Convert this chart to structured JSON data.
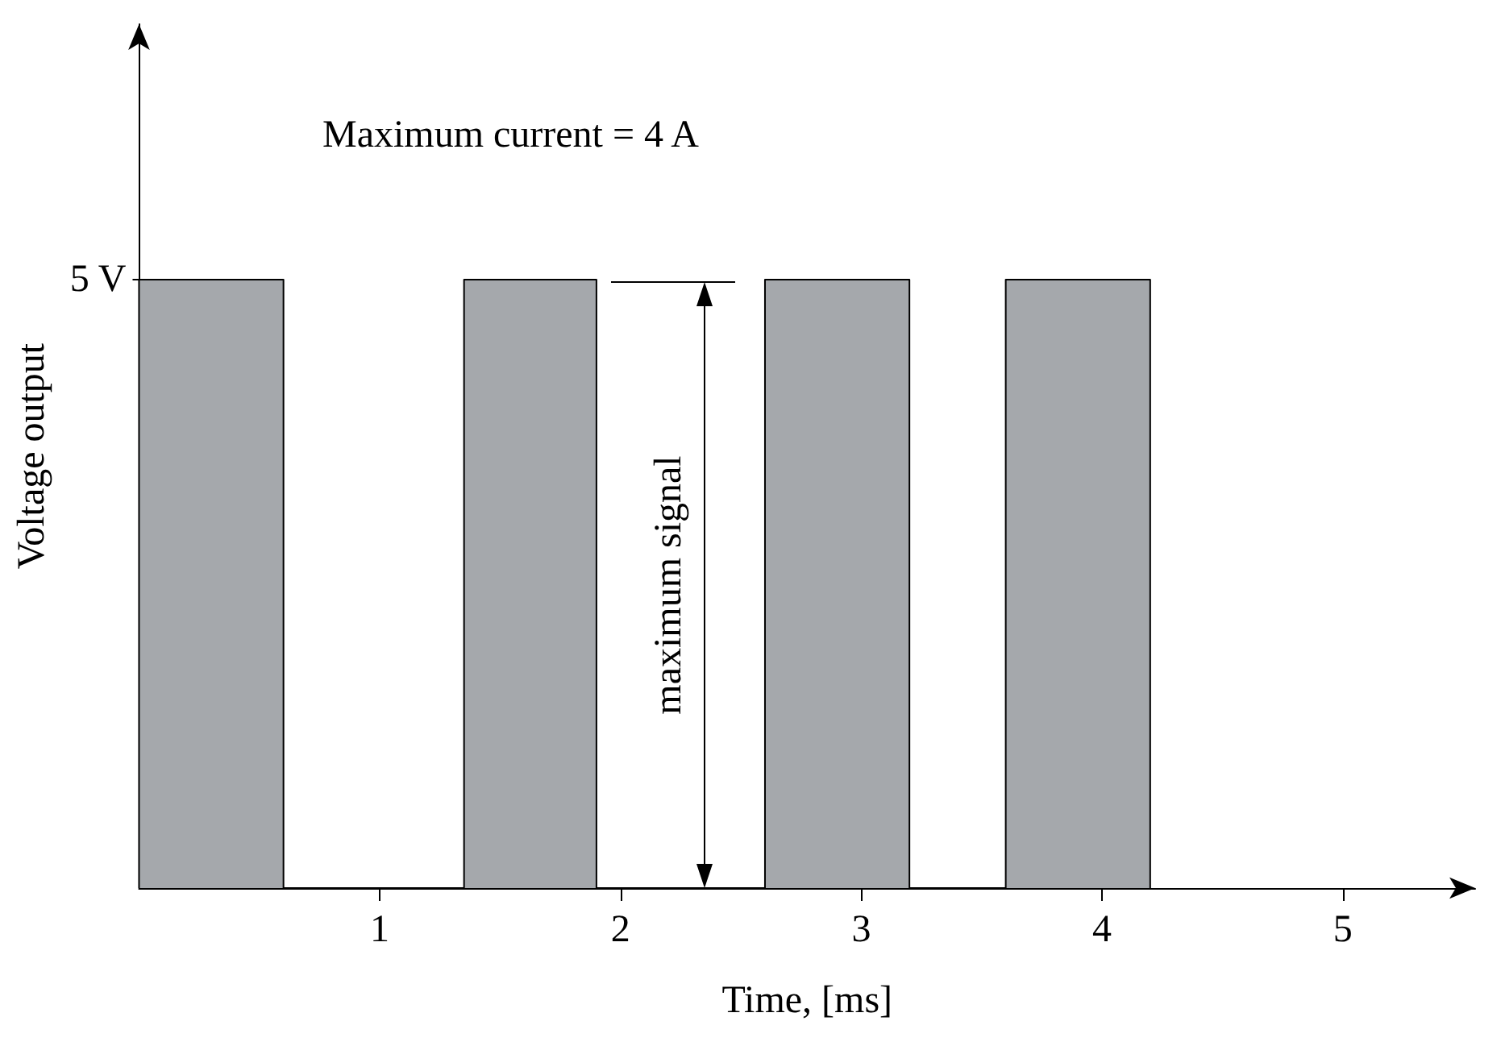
{
  "chart_data": {
    "type": "area",
    "xlabel": "Time, [ms]",
    "ylabel": "Voltage output",
    "annotations": [
      "Maximum current = 4 A",
      "maximum signal"
    ],
    "x": [
      0,
      0,
      0.6,
      0.6,
      1.35,
      1.35,
      1.9,
      1.9,
      2.6,
      2.6,
      3.2,
      3.2,
      3.6,
      3.6,
      4.2,
      4.2
    ],
    "values": [
      0,
      5,
      5,
      0,
      0,
      5,
      5,
      0,
      0,
      5,
      5,
      0,
      0,
      5,
      5,
      0
    ],
    "color": "#a5a8ac",
    "xlim": [
      0,
      5.55
    ],
    "xticks": [
      1,
      2,
      3,
      4,
      5
    ],
    "ylim": [
      0,
      7.1
    ],
    "yticks": [
      {
        "value": 5,
        "label": "5 V"
      }
    ],
    "grid": false,
    "marker": "none"
  }
}
